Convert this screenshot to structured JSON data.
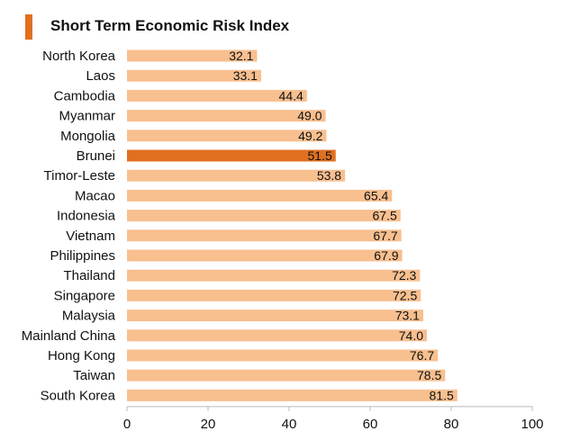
{
  "chart_data": {
    "type": "bar",
    "orientation": "horizontal",
    "title": "Short Term Economic Risk Index",
    "categories": [
      "North Korea",
      "Laos",
      "Cambodia",
      "Myanmar",
      "Mongolia",
      "Brunei",
      "Timor-Leste",
      "Macao",
      "Indonesia",
      "Vietnam",
      "Philippines",
      "Thailand",
      "Singapore",
      "Malaysia",
      "Mainland China",
      "Hong Kong",
      "Taiwan",
      "South Korea"
    ],
    "values": [
      32.1,
      33.1,
      44.4,
      49.0,
      49.2,
      51.5,
      53.8,
      65.4,
      67.5,
      67.7,
      67.9,
      72.3,
      72.5,
      73.1,
      74.0,
      76.7,
      78.5,
      81.5
    ],
    "value_labels": [
      "32.1",
      "33.1",
      "44.4",
      "49.0",
      "49.2",
      "51.5",
      "53.8",
      "65.4",
      "67.5",
      "67.7",
      "67.9",
      "72.3",
      "72.5",
      "73.1",
      "74.0",
      "76.7",
      "78.5",
      "81.5"
    ],
    "highlight": "Brunei",
    "xlim": [
      0,
      100
    ],
    "xticks": [
      "0",
      "20",
      "40",
      "60",
      "80",
      "100"
    ],
    "colors": {
      "bar": "#f8bf8f",
      "highlight": "#e07020",
      "title_accent": "#e07020"
    }
  }
}
